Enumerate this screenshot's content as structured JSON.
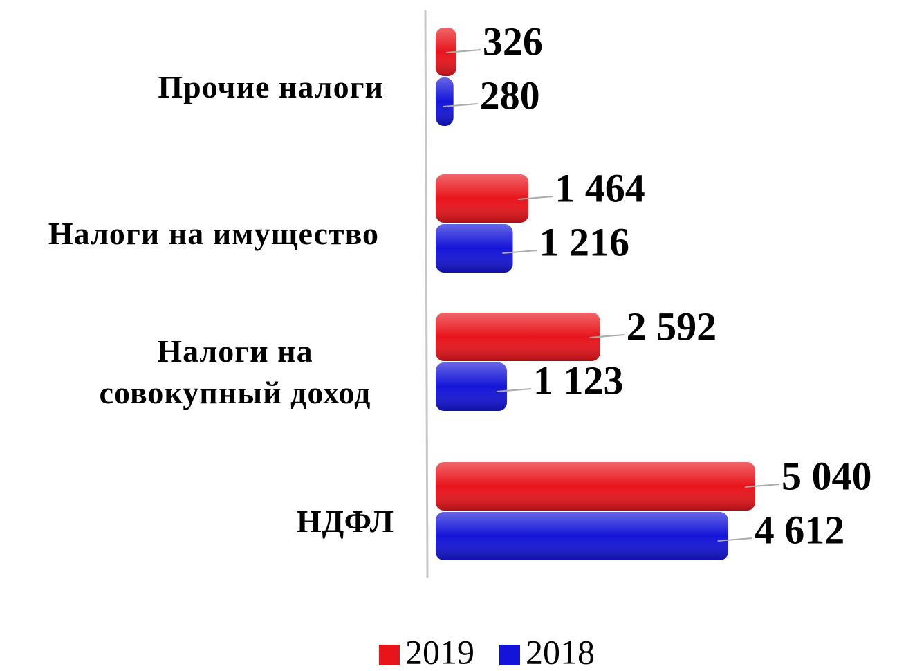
{
  "chart_data": {
    "type": "bar",
    "orientation": "horizontal",
    "categories": [
      "Прочие налоги",
      "Налоги на имущество",
      "Налоги на совокупный доход",
      "НДФЛ"
    ],
    "series": [
      {
        "name": "2019",
        "color": "#e8141b",
        "values": [
          326,
          1464,
          2592,
          5040
        ],
        "value_labels": [
          "326",
          "1 464",
          "2 592",
          "5 040"
        ]
      },
      {
        "name": "2018",
        "color": "#1414d8",
        "values": [
          280,
          1216,
          1123,
          4612
        ],
        "value_labels": [
          "280",
          "1 216",
          "1 123",
          "4 612"
        ]
      }
    ],
    "legend": "bottom"
  }
}
